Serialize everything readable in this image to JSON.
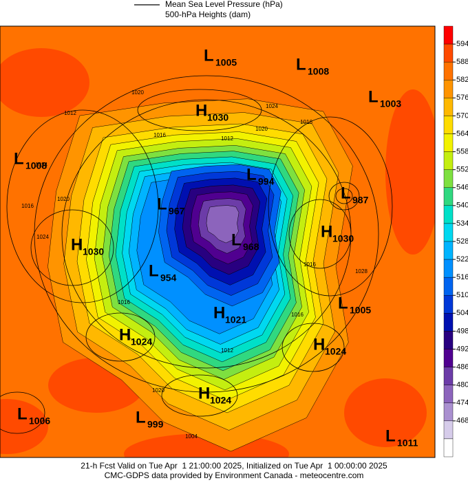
{
  "header": {
    "line_legend": "Mean Sea Level Pressure (hPa)",
    "fill_legend": "500-hPa Heights (dam)"
  },
  "colorbar": {
    "ticks": [
      594,
      588,
      582,
      576,
      570,
      564,
      558,
      552,
      546,
      540,
      534,
      528,
      522,
      516,
      510,
      504,
      498,
      492,
      486,
      480,
      474,
      468
    ],
    "colors": [
      "#ff0000",
      "#ff4a00",
      "#ff7200",
      "#ff9400",
      "#ffb800",
      "#ffdc00",
      "#f2f200",
      "#c4ee10",
      "#7ee040",
      "#30d880",
      "#00e0c8",
      "#00d8f0",
      "#00b4ff",
      "#0090ff",
      "#0064f0",
      "#0038d8",
      "#0010b0",
      "#280080",
      "#500090",
      "#6c3ca8",
      "#8c64bc",
      "#aa90d0",
      "#d6ccea",
      "#ffffff"
    ]
  },
  "pressure_centers": [
    {
      "type": "L",
      "value": 1005
    },
    {
      "type": "L",
      "value": 1008
    },
    {
      "type": "L",
      "value": 1003
    },
    {
      "type": "H",
      "value": 1030
    },
    {
      "type": "L",
      "value": 1008
    },
    {
      "type": "L",
      "value": 994
    },
    {
      "type": "L",
      "value": 987
    },
    {
      "type": "L",
      "value": 967
    },
    {
      "type": "H",
      "value": 1030
    },
    {
      "type": "H",
      "value": 1030
    },
    {
      "type": "L",
      "value": 968
    },
    {
      "type": "L",
      "value": 954
    },
    {
      "type": "H",
      "value": 1021
    },
    {
      "type": "L",
      "value": 1005
    },
    {
      "type": "H",
      "value": 1024
    },
    {
      "type": "H",
      "value": 1024
    },
    {
      "type": "H",
      "value": 1024
    },
    {
      "type": "L",
      "value": 1006
    },
    {
      "type": "L",
      "value": 999
    },
    {
      "type": "L",
      "value": 1011
    }
  ],
  "contour_labels": [
    1020,
    1012,
    1024,
    1016,
    1012,
    1016,
    1020,
    1024,
    1016,
    1020,
    1024,
    1016,
    1016,
    1028,
    1016,
    1012,
    1020,
    1004
  ],
  "footer": {
    "line1": "21-h Fcst Valid on Tue Apr  1 21:00:00 2025, Initialized on Tue Apr  1 00:00:00 2025",
    "line2": "CMC-GDPS data provided by Environment Canada - meteocentre.com"
  }
}
